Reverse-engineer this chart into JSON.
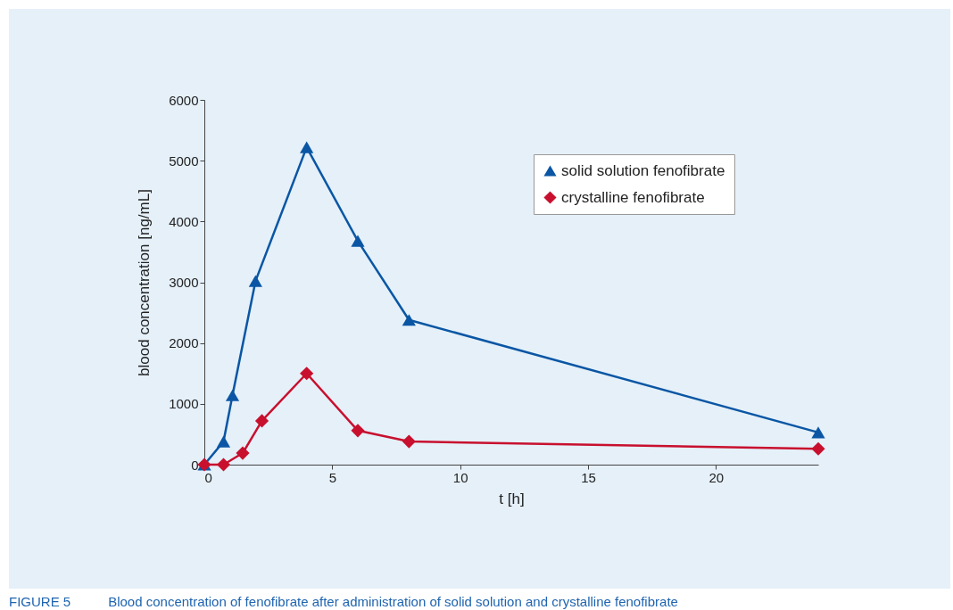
{
  "chart_data": {
    "type": "line",
    "xlabel": "t [h]",
    "ylabel": "blood concentration [ng/mL]",
    "xlim": [
      0,
      24
    ],
    "xticks": [
      0,
      5,
      10,
      15,
      20
    ],
    "ylim": [
      0,
      6000
    ],
    "yticks": [
      0,
      1000,
      2000,
      3000,
      4000,
      5000,
      6000
    ],
    "grid": false,
    "legend": "top right",
    "series": [
      {
        "name": "solid solution fenofibrate",
        "color": "#0a56a4",
        "marker": "triangle",
        "x": [
          0,
          0.75,
          1.1,
          2,
          4,
          6,
          8,
          24
        ],
        "values": [
          0,
          380,
          1140,
          3020,
          5220,
          3680,
          2380,
          530
        ]
      },
      {
        "name": "crystalline fenofibrate",
        "color": "#c8102e",
        "marker": "diamond",
        "x": [
          0,
          0.75,
          1.5,
          2.25,
          4,
          6,
          8,
          24
        ],
        "values": [
          0,
          0,
          190,
          720,
          1500,
          560,
          380,
          260
        ]
      }
    ],
    "annotations": [
      "FIGURE 5",
      "Blood concentration of fenofibrate after administration of solid solution and crystalline fenofibrate"
    ]
  }
}
